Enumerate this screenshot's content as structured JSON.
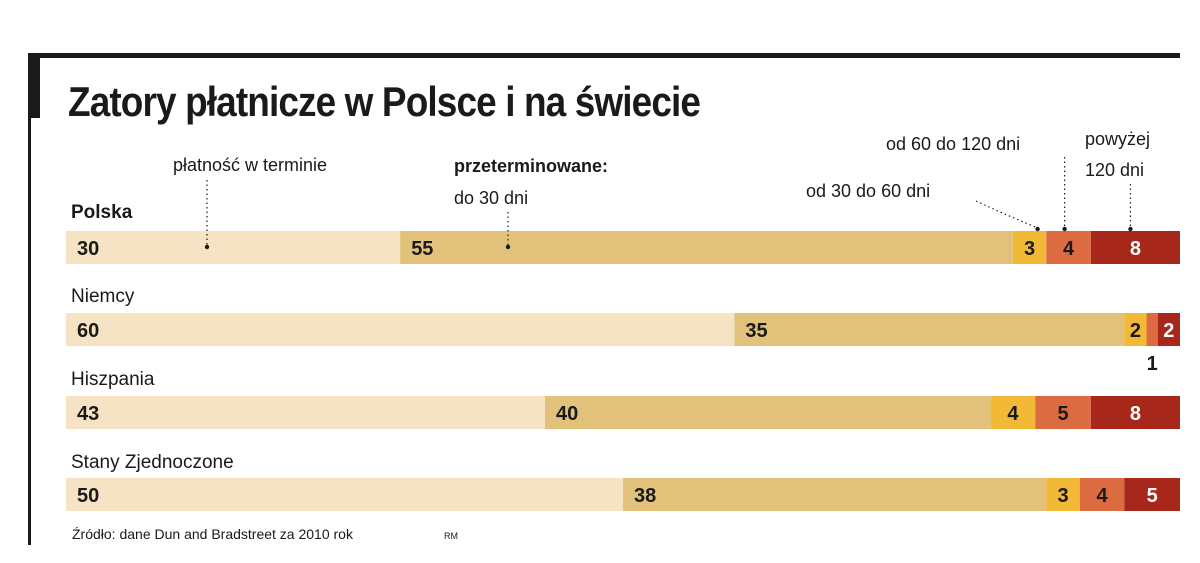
{
  "title": "Zatory płatnicze w Polsce i na świecie",
  "source": "Źródło: dane Dun and Bradstreet za 2010 rok",
  "credit": "RM",
  "chart_data": {
    "type": "bar",
    "stacked": true,
    "orientation": "horizontal",
    "annotations": {
      "on_time": "płatność w terminie",
      "overdue_header": "przeterminowane:",
      "to_30": "do 30 dni",
      "d30_60": "od 30 do 60 dni",
      "d60_120": "od 60 do 120 dni",
      "over120_line1": "powyżej",
      "over120_line2": "120 dni"
    },
    "segment_colors": [
      "#f5e3c3",
      "#e2c27a",
      "#f2b936",
      "#dd6b41",
      "#a7281a"
    ],
    "label_colors": [
      "#1a1a1a",
      "#1a1a1a",
      "#1a1a1a",
      "#1a1a1a",
      "#ffffff"
    ],
    "categories": [
      "Polska",
      "Niemcy",
      "Hiszpania",
      "Stany Zjednoczone"
    ],
    "values": [
      [
        30,
        55,
        3,
        4,
        8
      ],
      [
        60,
        35,
        2,
        1,
        2
      ],
      [
        43,
        40,
        4,
        5,
        8
      ],
      [
        50,
        38,
        3,
        4,
        5
      ]
    ]
  }
}
